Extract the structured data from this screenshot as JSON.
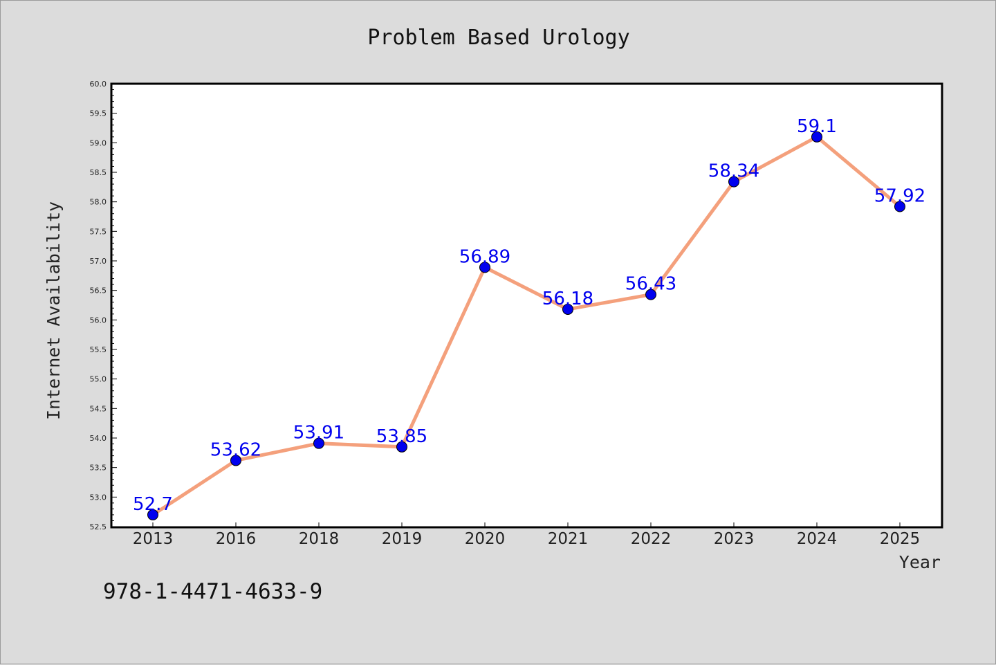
{
  "chart_data": {
    "type": "line",
    "title": "Problem Based Urology",
    "xlabel": "Year",
    "ylabel": "Internet Availability",
    "categories": [
      "2013",
      "2016",
      "2018",
      "2019",
      "2020",
      "2021",
      "2022",
      "2023",
      "2024",
      "2025"
    ],
    "series": [
      {
        "values": [
          52.7,
          53.62,
          53.91,
          53.85,
          56.89,
          56.18,
          56.43,
          58.34,
          59.1,
          57.92
        ],
        "labels": [
          "52.7",
          "53.62",
          "53.91",
          "53.85",
          "56.89",
          "56.18",
          "56.43",
          "58.34",
          "59.1",
          "57.92"
        ],
        "line_color": "#f4a07c",
        "marker_color": "#0000ee"
      }
    ],
    "ylim": [
      52.5,
      60.0
    ],
    "yticks": [
      "52.5",
      "53.0",
      "53.5",
      "54.0",
      "54.5",
      "55.0",
      "55.5",
      "56.0",
      "56.5",
      "57.0",
      "57.5",
      "58.0",
      "58.5",
      "59.0",
      "59.5",
      "60.0"
    ],
    "grid": false,
    "legend": "none"
  },
  "footer": {
    "isbn": "978-1-4471-4633-9"
  },
  "colors": {
    "background": "#dcdcdc",
    "plot_background": "#ffffff",
    "line": "#f4a07c",
    "marker": "#0000ee",
    "data_label": "#0000ee"
  }
}
